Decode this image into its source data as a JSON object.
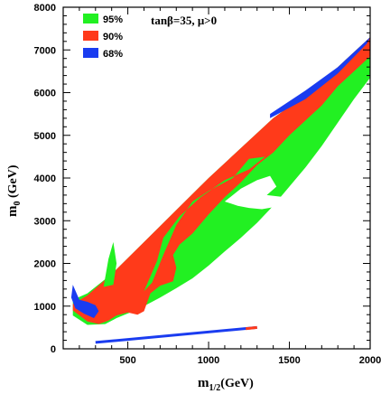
{
  "chart_data": {
    "type": "area",
    "x_axis": {
      "label_main": "m",
      "label_sub": "1/2",
      "label_unit": "(GeV)",
      "min": 100,
      "max": 2000,
      "ticks": [
        500,
        1000,
        1500,
        2000
      ]
    },
    "y_axis": {
      "label_main": "m",
      "label_sub": "0",
      "label_unit": " (GeV)",
      "min": 0,
      "max": 8000,
      "ticks": [
        0,
        1000,
        2000,
        3000,
        4000,
        5000,
        6000,
        7000,
        8000
      ]
    },
    "annotation": "tanβ=35, μ>0",
    "legend_position": "top-left",
    "series": [
      {
        "name": "95%",
        "color": "#22f022",
        "region": [
          [
            160,
            780
          ],
          [
            250,
            560
          ],
          [
            360,
            580
          ],
          [
            430,
            720
          ],
          [
            520,
            860
          ],
          [
            600,
            1000
          ],
          [
            700,
            1200
          ],
          [
            800,
            1420
          ],
          [
            900,
            1650
          ],
          [
            1000,
            1950
          ],
          [
            1100,
            2280
          ],
          [
            1200,
            2600
          ],
          [
            1300,
            2950
          ],
          [
            1400,
            3350
          ],
          [
            1500,
            3800
          ],
          [
            1600,
            4250
          ],
          [
            1700,
            4750
          ],
          [
            1800,
            5300
          ],
          [
            1900,
            5850
          ],
          [
            2000,
            6350
          ],
          [
            2000,
            7300
          ],
          [
            1900,
            6950
          ],
          [
            1800,
            6600
          ],
          [
            1600,
            5950
          ],
          [
            1400,
            5400
          ],
          [
            1200,
            4700
          ],
          [
            1000,
            4000
          ],
          [
            800,
            3250
          ],
          [
            600,
            2500
          ],
          [
            400,
            1750
          ],
          [
            250,
            1300
          ],
          [
            160,
            1150
          ]
        ]
      },
      {
        "name": "90%",
        "color": "#ff3a1a",
        "region": [
          [
            160,
            900
          ],
          [
            250,
            640
          ],
          [
            320,
            580
          ],
          [
            380,
            660
          ],
          [
            430,
            780
          ],
          [
            500,
            850
          ],
          [
            560,
            800
          ],
          [
            600,
            880
          ],
          [
            640,
            1300
          ],
          [
            700,
            1480
          ],
          [
            780,
            1580
          ],
          [
            800,
            1900
          ],
          [
            780,
            2200
          ],
          [
            820,
            2440
          ],
          [
            900,
            2700
          ],
          [
            1000,
            3150
          ],
          [
            1100,
            3550
          ],
          [
            1200,
            3900
          ],
          [
            1300,
            4300
          ],
          [
            1400,
            4600
          ],
          [
            1500,
            5000
          ],
          [
            1600,
            5350
          ],
          [
            1700,
            5700
          ],
          [
            1800,
            6150
          ],
          [
            1900,
            6500
          ],
          [
            2000,
            6850
          ],
          [
            2000,
            7300
          ],
          [
            1900,
            6950
          ],
          [
            1800,
            6600
          ],
          [
            1600,
            5950
          ],
          [
            1400,
            5400
          ],
          [
            1200,
            4700
          ],
          [
            1000,
            4000
          ],
          [
            800,
            3250
          ],
          [
            600,
            2500
          ],
          [
            400,
            1750
          ],
          [
            250,
            1250
          ],
          [
            160,
            1050
          ]
        ]
      },
      {
        "name": "68%",
        "color": "#1a3cf0",
        "region": [
          [
            1380,
            5500
          ],
          [
            1600,
            6050
          ],
          [
            1800,
            6600
          ],
          [
            2000,
            7300
          ],
          [
            1980,
            7150
          ],
          [
            1800,
            6450
          ],
          [
            1600,
            5850
          ],
          [
            1380,
            5400
          ]
        ]
      }
    ],
    "holes": {
      "green_in_red": [
        [
          [
            350,
            1450
          ],
          [
            380,
            2100
          ],
          [
            410,
            2500
          ],
          [
            430,
            2000
          ],
          [
            410,
            1500
          ]
        ],
        [
          [
            600,
            1350
          ],
          [
            680,
            2050
          ],
          [
            720,
            2600
          ],
          [
            820,
            3100
          ],
          [
            950,
            3550
          ],
          [
            1100,
            3950
          ],
          [
            1250,
            4200
          ],
          [
            1350,
            4500
          ],
          [
            1250,
            4450
          ],
          [
            1150,
            4000
          ],
          [
            1000,
            3700
          ],
          [
            900,
            3450
          ],
          [
            800,
            2900
          ],
          [
            720,
            2200
          ],
          [
            650,
            1550
          ]
        ]
      ],
      "white_in_green": [
        [
          [
            1100,
            3450
          ],
          [
            1200,
            3750
          ],
          [
            1300,
            3950
          ],
          [
            1380,
            4050
          ],
          [
            1420,
            3800
          ],
          [
            1360,
            3600
          ],
          [
            1450,
            3560
          ],
          [
            1520,
            3500
          ],
          [
            1540,
            3300
          ],
          [
            1450,
            3350
          ],
          [
            1330,
            3270
          ],
          [
            1250,
            3300
          ],
          [
            1180,
            3350
          ]
        ]
      ]
    },
    "extra_blue": [
      [
        160,
        1500
      ],
      [
        200,
        1150
      ],
      [
        250,
        1100
      ],
      [
        300,
        1020
      ],
      [
        320,
        880
      ],
      [
        290,
        720
      ],
      [
        230,
        820
      ],
      [
        175,
        950
      ],
      [
        150,
        1200
      ]
    ],
    "thin_band": [
      [
        300,
        150
      ],
      [
        1300,
        500
      ]
    ]
  }
}
